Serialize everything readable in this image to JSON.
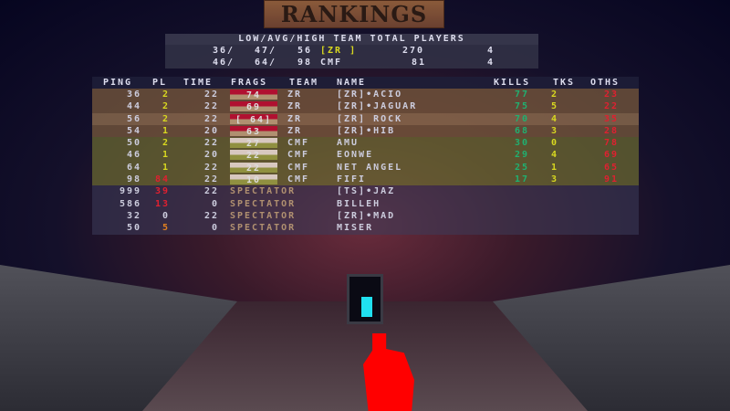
{
  "title": "RANKINGS",
  "summary": {
    "header": "LOW/AVG/HIGH TEAM TOTAL PLAYERS",
    "rows": [
      {
        "low": "36/",
        "avg": "47/",
        "high": "56",
        "team": "[ZR      ]",
        "total": "270",
        "players": "4"
      },
      {
        "low": "46/",
        "avg": "64/",
        "high": "98",
        "team": " CMF",
        "total": "81",
        "players": "4"
      }
    ]
  },
  "headers": {
    "ping": "PING",
    "pl": "PL",
    "time": "TIME",
    "frags": "FRAGS",
    "team": "TEAM",
    "name": "NAME",
    "kills": "KILLS",
    "tks": "TKS",
    "oths": "OTHS"
  },
  "players": [
    {
      "ping": "36",
      "pl": "2",
      "time": "22",
      "frags": "74",
      "team": "ZR",
      "name": "[ZR]•ACIO",
      "kills": "77",
      "tks": "2",
      "oths": "23"
    },
    {
      "ping": "44",
      "pl": "2",
      "time": "22",
      "frags": "69",
      "team": "ZR",
      "name": "[ZR]•JAGUAR",
      "kills": "75",
      "tks": "5",
      "oths": "22"
    },
    {
      "ping": "56",
      "pl": "2",
      "time": "22",
      "frags": "[ 64]",
      "team": "ZR",
      "name": "[ZR] ROCK",
      "kills": "70",
      "tks": "4",
      "oths": "35"
    },
    {
      "ping": "54",
      "pl": "1",
      "time": "20",
      "frags": "63",
      "team": "ZR",
      "name": "[ZR]•HIB",
      "kills": "68",
      "tks": "3",
      "oths": "28"
    },
    {
      "ping": "50",
      "pl": "2",
      "time": "22",
      "frags": "27",
      "team": "CMF",
      "name": "AMU",
      "kills": "30",
      "tks": "0",
      "oths": "78"
    },
    {
      "ping": "46",
      "pl": "1",
      "time": "20",
      "frags": "22",
      "team": "CMF",
      "name": "EONWE",
      "kills": "29",
      "tks": "4",
      "oths": "69"
    },
    {
      "ping": "64",
      "pl": "1",
      "time": "22",
      "frags": "22",
      "team": "CMF",
      "name": "NET ANGEL",
      "kills": "25",
      "tks": "1",
      "oths": "65"
    },
    {
      "ping": "98",
      "pl": "84",
      "time": "22",
      "frags": "10",
      "team": "CMF",
      "name": "FIFI",
      "kills": "17",
      "tks": "3",
      "oths": "91"
    },
    {
      "ping": "999",
      "pl": "39",
      "time": "22",
      "team": "SPECTATOR",
      "name": "[TS]•JAZ"
    },
    {
      "ping": "586",
      "pl": "13",
      "time": "0",
      "team": "SPECTATOR",
      "name": "BILLEH"
    },
    {
      "ping": "32",
      "pl": "0",
      "time": "22",
      "team": "SPECTATOR",
      "name": "[ZR]•MAD"
    },
    {
      "ping": "50",
      "pl": "5",
      "time": "0",
      "team": "SPECTATOR",
      "name": "MISER"
    }
  ]
}
